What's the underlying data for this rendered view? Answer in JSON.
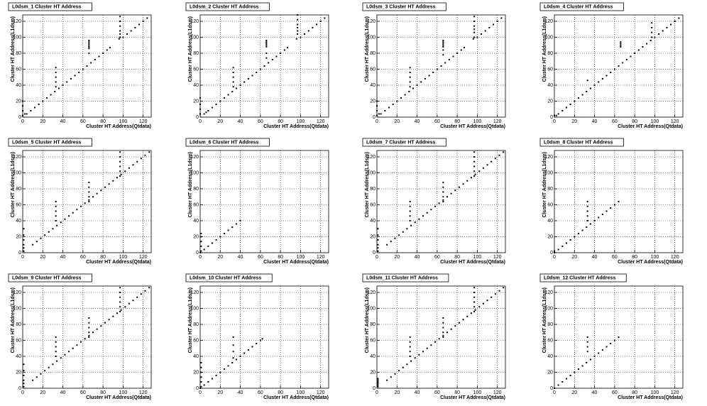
{
  "chart_data": [
    {
      "type": "scatter",
      "title": "L0dsm_1 Cluster HT Address",
      "xlabel": "Cluster HT Address(Qtdata)",
      "ylabel": "Cluster HT Address(L1dsm)",
      "xlim": [
        0,
        128
      ],
      "ylim": [
        0,
        128
      ],
      "xticks": [
        0,
        20,
        40,
        60,
        80,
        100,
        120
      ],
      "yticks": [
        0,
        20,
        40,
        60,
        80,
        100,
        120
      ],
      "grid": true,
      "color": "#000000",
      "x": [
        0,
        0,
        0,
        0,
        2,
        4,
        8,
        12,
        16,
        20,
        24,
        28,
        32,
        36,
        40,
        44,
        48,
        52,
        56,
        60,
        64,
        68,
        72,
        76,
        80,
        84,
        87,
        96,
        100,
        104,
        108,
        112,
        116,
        120,
        124,
        33,
        33,
        33,
        33,
        33,
        66,
        66,
        66,
        66,
        66,
        66,
        66,
        97,
        97,
        97,
        97,
        97,
        97
      ],
      "y": [
        2,
        8,
        14,
        20,
        4,
        4,
        8,
        12,
        16,
        20,
        24,
        28,
        32,
        36,
        40,
        44,
        48,
        52,
        56,
        60,
        64,
        68,
        72,
        76,
        80,
        84,
        87,
        98,
        100,
        104,
        108,
        112,
        116,
        120,
        124,
        38,
        44,
        50,
        56,
        62,
        80,
        86,
        88,
        90,
        92,
        94,
        96,
        100,
        104,
        108,
        114,
        120,
        126
      ]
    },
    {
      "type": "scatter",
      "title": "L0dsm_2 Cluster HT Address",
      "xlabel": "Cluster HT Address(Qtdata)",
      "ylabel": "Cluster HT Address(L1dsm)",
      "xlim": [
        0,
        128
      ],
      "ylim": [
        0,
        128
      ],
      "xticks": [
        0,
        20,
        40,
        60,
        80,
        100,
        120
      ],
      "yticks": [
        0,
        20,
        40,
        60,
        80,
        100,
        120
      ],
      "grid": true,
      "color": "#000000",
      "x": [
        0,
        0,
        0,
        0,
        6,
        4,
        8,
        12,
        16,
        20,
        24,
        28,
        32,
        36,
        40,
        44,
        48,
        52,
        56,
        60,
        64,
        68,
        72,
        76,
        80,
        84,
        87,
        96,
        100,
        104,
        108,
        112,
        116,
        120,
        124,
        33,
        33,
        33,
        33,
        33,
        66,
        66,
        66,
        66,
        66,
        66,
        66,
        97,
        97,
        97,
        97,
        97,
        97
      ],
      "y": [
        4,
        10,
        16,
        24,
        6,
        4,
        8,
        12,
        16,
        20,
        24,
        28,
        32,
        36,
        40,
        44,
        48,
        52,
        56,
        60,
        64,
        68,
        72,
        76,
        80,
        84,
        87,
        98,
        100,
        104,
        108,
        112,
        116,
        120,
        124,
        38,
        44,
        50,
        56,
        62,
        74,
        80,
        88,
        90,
        92,
        94,
        96,
        104,
        108,
        112,
        116,
        122,
        128
      ]
    },
    {
      "type": "scatter",
      "title": "L0dsm_3 Cluster HT Address",
      "xlabel": "Cluster HT Address(Qtdata)",
      "ylabel": "Cluster HT Address(L1dsm)",
      "xlim": [
        0,
        128
      ],
      "ylim": [
        0,
        128
      ],
      "xticks": [
        0,
        20,
        40,
        60,
        80,
        100,
        120
      ],
      "yticks": [
        0,
        20,
        40,
        60,
        80,
        100,
        120
      ],
      "grid": true,
      "color": "#000000",
      "x": [
        0,
        0,
        0,
        0,
        2,
        4,
        8,
        12,
        16,
        20,
        24,
        28,
        32,
        36,
        40,
        44,
        48,
        52,
        56,
        60,
        64,
        68,
        72,
        76,
        80,
        84,
        87,
        96,
        100,
        104,
        108,
        112,
        116,
        120,
        124,
        33,
        33,
        33,
        33,
        33,
        66,
        66,
        66,
        66,
        66,
        66,
        66,
        97,
        97,
        97,
        97,
        97,
        97
      ],
      "y": [
        2,
        8,
        14,
        20,
        4,
        4,
        8,
        12,
        16,
        20,
        24,
        28,
        32,
        36,
        40,
        44,
        48,
        52,
        56,
        60,
        64,
        68,
        72,
        76,
        80,
        84,
        87,
        98,
        100,
        104,
        108,
        112,
        116,
        120,
        124,
        38,
        44,
        50,
        56,
        62,
        78,
        84,
        88,
        90,
        92,
        94,
        96,
        100,
        106,
        110,
        114,
        120,
        126
      ]
    },
    {
      "type": "scatter",
      "title": "L0dsm_4 Cluster HT Address",
      "xlabel": "Cluster HT Address(Qtdata)",
      "ylabel": "Cluster HT Address(L1dsm)",
      "xlim": [
        0,
        128
      ],
      "ylim": [
        0,
        128
      ],
      "xticks": [
        0,
        20,
        40,
        60,
        80,
        100,
        120
      ],
      "yticks": [
        0,
        20,
        40,
        60,
        80,
        100,
        120
      ],
      "grid": true,
      "color": "#000000",
      "x": [
        0,
        2,
        4,
        8,
        12,
        16,
        20,
        24,
        28,
        32,
        36,
        40,
        44,
        48,
        52,
        56,
        60,
        64,
        68,
        72,
        76,
        80,
        84,
        88,
        92,
        96,
        100,
        104,
        108,
        112,
        116,
        120,
        124,
        33,
        66,
        66,
        66,
        66,
        97,
        97,
        97,
        97
      ],
      "y": [
        2,
        2,
        4,
        8,
        12,
        16,
        20,
        24,
        28,
        32,
        36,
        40,
        44,
        48,
        52,
        56,
        60,
        64,
        68,
        72,
        76,
        80,
        84,
        88,
        92,
        96,
        100,
        104,
        108,
        112,
        116,
        120,
        124,
        46,
        88,
        90,
        92,
        94,
        100,
        106,
        112,
        118
      ]
    },
    {
      "type": "scatter",
      "title": "L0dsm_5 Cluster HT Address",
      "xlabel": "Cluster HT Address(Qtdata)",
      "ylabel": "Cluster HT Address(L1dsm)",
      "xlim": [
        0,
        128
      ],
      "ylim": [
        0,
        128
      ],
      "xticks": [
        0,
        20,
        40,
        60,
        80,
        100,
        120
      ],
      "yticks": [
        0,
        20,
        40,
        60,
        80,
        100,
        120
      ],
      "grid": true,
      "color": "#000000",
      "x": [
        1,
        1,
        1,
        1,
        1,
        1,
        10,
        14,
        18,
        22,
        26,
        30,
        34,
        38,
        42,
        46,
        50,
        54,
        58,
        62,
        66,
        70,
        74,
        78,
        82,
        86,
        90,
        94,
        98,
        102,
        106,
        110,
        114,
        118,
        122,
        126,
        33,
        33,
        33,
        33,
        33,
        66,
        66,
        66,
        66,
        66,
        97,
        97,
        97,
        97,
        97,
        97
      ],
      "y": [
        2,
        6,
        10,
        16,
        22,
        30,
        10,
        14,
        18,
        22,
        26,
        30,
        34,
        38,
        42,
        46,
        50,
        54,
        58,
        62,
        66,
        70,
        74,
        78,
        82,
        86,
        90,
        94,
        98,
        102,
        106,
        110,
        114,
        118,
        122,
        126,
        40,
        46,
        52,
        58,
        64,
        64,
        70,
        76,
        82,
        88,
        96,
        102,
        108,
        114,
        120,
        126
      ]
    },
    {
      "type": "scatter",
      "title": "L0dsm_6 Cluster HT Address",
      "xlabel": "Cluster HT Address(Qtdata)",
      "ylabel": "Cluster HT Address(L1dsm)",
      "xlim": [
        0,
        128
      ],
      "ylim": [
        0,
        128
      ],
      "xticks": [
        0,
        20,
        40,
        60,
        80,
        100,
        120
      ],
      "yticks": [
        0,
        20,
        40,
        60,
        80,
        100,
        120
      ],
      "grid": true,
      "color": "#000000",
      "x": [
        1,
        1,
        1,
        1,
        1,
        0,
        4,
        8,
        12,
        16,
        20,
        24,
        28,
        32,
        36,
        40
      ],
      "y": [
        2,
        8,
        14,
        20,
        24,
        0,
        4,
        8,
        12,
        16,
        20,
        24,
        28,
        32,
        36,
        40
      ]
    },
    {
      "type": "scatter",
      "title": "L0dsm_7 Cluster HT Address",
      "xlabel": "Cluster HT Address(Qtdata)",
      "ylabel": "Cluster HT Address(L1dsm)",
      "xlim": [
        0,
        128
      ],
      "ylim": [
        0,
        128
      ],
      "xticks": [
        0,
        20,
        40,
        60,
        80,
        100,
        120
      ],
      "yticks": [
        0,
        20,
        40,
        60,
        80,
        100,
        120
      ],
      "grid": true,
      "color": "#000000",
      "x": [
        1,
        1,
        1,
        1,
        1,
        1,
        10,
        14,
        18,
        22,
        26,
        30,
        34,
        38,
        42,
        46,
        50,
        54,
        58,
        62,
        66,
        70,
        74,
        78,
        82,
        86,
        90,
        94,
        98,
        102,
        106,
        110,
        114,
        118,
        122,
        126,
        33,
        33,
        33,
        33,
        33,
        66,
        66,
        66,
        66,
        66,
        97,
        97,
        97,
        97,
        97,
        97
      ],
      "y": [
        2,
        6,
        10,
        16,
        22,
        30,
        10,
        14,
        18,
        22,
        26,
        30,
        34,
        38,
        42,
        46,
        50,
        54,
        58,
        62,
        66,
        70,
        74,
        78,
        82,
        86,
        90,
        94,
        98,
        102,
        106,
        110,
        114,
        118,
        122,
        126,
        40,
        46,
        52,
        58,
        64,
        64,
        70,
        76,
        82,
        88,
        96,
        102,
        108,
        114,
        120,
        126
      ]
    },
    {
      "type": "scatter",
      "title": "L0dsm_8 Cluster HT Address",
      "xlabel": "Cluster HT Address(Qtdata)",
      "ylabel": "Cluster HT Address(L1dsm)",
      "xlim": [
        0,
        128
      ],
      "ylim": [
        0,
        128
      ],
      "xticks": [
        0,
        20,
        40,
        60,
        80,
        100,
        120
      ],
      "yticks": [
        0,
        20,
        40,
        60,
        80,
        100,
        120
      ],
      "grid": true,
      "color": "#000000",
      "x": [
        0,
        0,
        4,
        8,
        12,
        16,
        20,
        24,
        28,
        32,
        36,
        40,
        44,
        48,
        52,
        56,
        60,
        64,
        33,
        33,
        33,
        33,
        33
      ],
      "y": [
        2,
        0,
        4,
        8,
        12,
        16,
        20,
        24,
        28,
        32,
        36,
        40,
        44,
        48,
        52,
        56,
        60,
        64,
        40,
        46,
        52,
        58,
        64
      ]
    },
    {
      "type": "scatter",
      "title": "L0dsm_9 Cluster HT Address",
      "xlabel": "Cluster HT Address(Qtdata)",
      "ylabel": "Cluster HT Address(L1dsm)",
      "xlim": [
        0,
        128
      ],
      "ylim": [
        0,
        128
      ],
      "xticks": [
        0,
        20,
        40,
        60,
        80,
        100,
        120
      ],
      "yticks": [
        0,
        20,
        40,
        60,
        80,
        100,
        120
      ],
      "grid": true,
      "color": "#000000",
      "x": [
        1,
        1,
        1,
        1,
        1,
        1,
        10,
        14,
        18,
        22,
        26,
        30,
        34,
        38,
        42,
        46,
        50,
        54,
        58,
        62,
        66,
        70,
        74,
        78,
        82,
        86,
        90,
        94,
        98,
        102,
        106,
        110,
        114,
        118,
        122,
        126,
        33,
        33,
        33,
        33,
        33,
        66,
        66,
        66,
        66,
        66,
        97,
        97,
        97,
        97,
        97,
        97
      ],
      "y": [
        2,
        6,
        10,
        16,
        22,
        30,
        10,
        14,
        18,
        22,
        26,
        30,
        34,
        38,
        42,
        46,
        50,
        54,
        58,
        62,
        66,
        70,
        74,
        78,
        82,
        86,
        90,
        94,
        98,
        102,
        106,
        110,
        114,
        118,
        122,
        126,
        40,
        46,
        52,
        58,
        64,
        64,
        70,
        76,
        82,
        88,
        96,
        102,
        108,
        114,
        120,
        126
      ]
    },
    {
      "type": "scatter",
      "title": "L0dsm_10 Cluster HT Address",
      "xlabel": "Cluster HT Address(Qtdata)",
      "ylabel": "Cluster HT Address(L1dsm)",
      "xlim": [
        0,
        128
      ],
      "ylim": [
        0,
        128
      ],
      "xticks": [
        0,
        20,
        40,
        60,
        80,
        100,
        120
      ],
      "yticks": [
        0,
        20,
        40,
        60,
        80,
        100,
        120
      ],
      "grid": true,
      "color": "#000000",
      "x": [
        1,
        1,
        1,
        1,
        1,
        1,
        0,
        4,
        8,
        12,
        16,
        20,
        24,
        28,
        32,
        36,
        40,
        44,
        48,
        52,
        56,
        60,
        62,
        33,
        33,
        33,
        33
      ],
      "y": [
        2,
        8,
        14,
        20,
        26,
        32,
        0,
        4,
        8,
        12,
        16,
        20,
        24,
        28,
        32,
        36,
        40,
        44,
        48,
        52,
        56,
        60,
        62,
        38,
        46,
        54,
        64
      ]
    },
    {
      "type": "scatter",
      "title": "L0dsm_11 Cluster HT Address",
      "xlabel": "Cluster HT Address(Qtdata)",
      "ylabel": "Cluster HT Address(L1dsm)",
      "xlim": [
        0,
        128
      ],
      "ylim": [
        0,
        128
      ],
      "xticks": [
        0,
        20,
        40,
        60,
        80,
        100,
        120
      ],
      "yticks": [
        0,
        20,
        40,
        60,
        80,
        100,
        120
      ],
      "grid": true,
      "color": "#000000",
      "x": [
        1,
        1,
        1,
        1,
        1,
        1,
        10,
        14,
        18,
        22,
        26,
        30,
        34,
        38,
        42,
        46,
        50,
        54,
        58,
        62,
        66,
        70,
        74,
        78,
        82,
        86,
        90,
        94,
        98,
        102,
        106,
        110,
        114,
        118,
        122,
        126,
        33,
        33,
        33,
        33,
        33,
        66,
        66,
        66,
        66,
        66,
        97,
        97,
        97,
        97,
        97,
        97
      ],
      "y": [
        2,
        4,
        6,
        8,
        10,
        12,
        10,
        14,
        18,
        22,
        26,
        30,
        34,
        38,
        42,
        46,
        50,
        54,
        58,
        62,
        66,
        70,
        74,
        78,
        82,
        86,
        90,
        94,
        98,
        102,
        106,
        110,
        114,
        118,
        122,
        126,
        40,
        46,
        52,
        58,
        64,
        64,
        70,
        76,
        82,
        88,
        96,
        102,
        108,
        114,
        120,
        126
      ]
    },
    {
      "type": "scatter",
      "title": "L0dsm_12 Cluster HT Address",
      "xlabel": "Cluster HT Address(Qtdata)",
      "ylabel": "Cluster HT Address(L1dsm)",
      "xlim": [
        0,
        128
      ],
      "ylim": [
        0,
        128
      ],
      "xticks": [
        0,
        20,
        40,
        60,
        80,
        100,
        120
      ],
      "yticks": [
        0,
        20,
        40,
        60,
        80,
        100,
        120
      ],
      "grid": true,
      "color": "#000000",
      "x": [
        0,
        4,
        8,
        12,
        16,
        20,
        24,
        28,
        32,
        36,
        40,
        44,
        48,
        52,
        56,
        60,
        64,
        33,
        33,
        33,
        33
      ],
      "y": [
        0,
        4,
        8,
        12,
        16,
        20,
        24,
        28,
        32,
        36,
        40,
        44,
        48,
        52,
        56,
        60,
        64,
        46,
        52,
        58,
        64
      ]
    }
  ]
}
